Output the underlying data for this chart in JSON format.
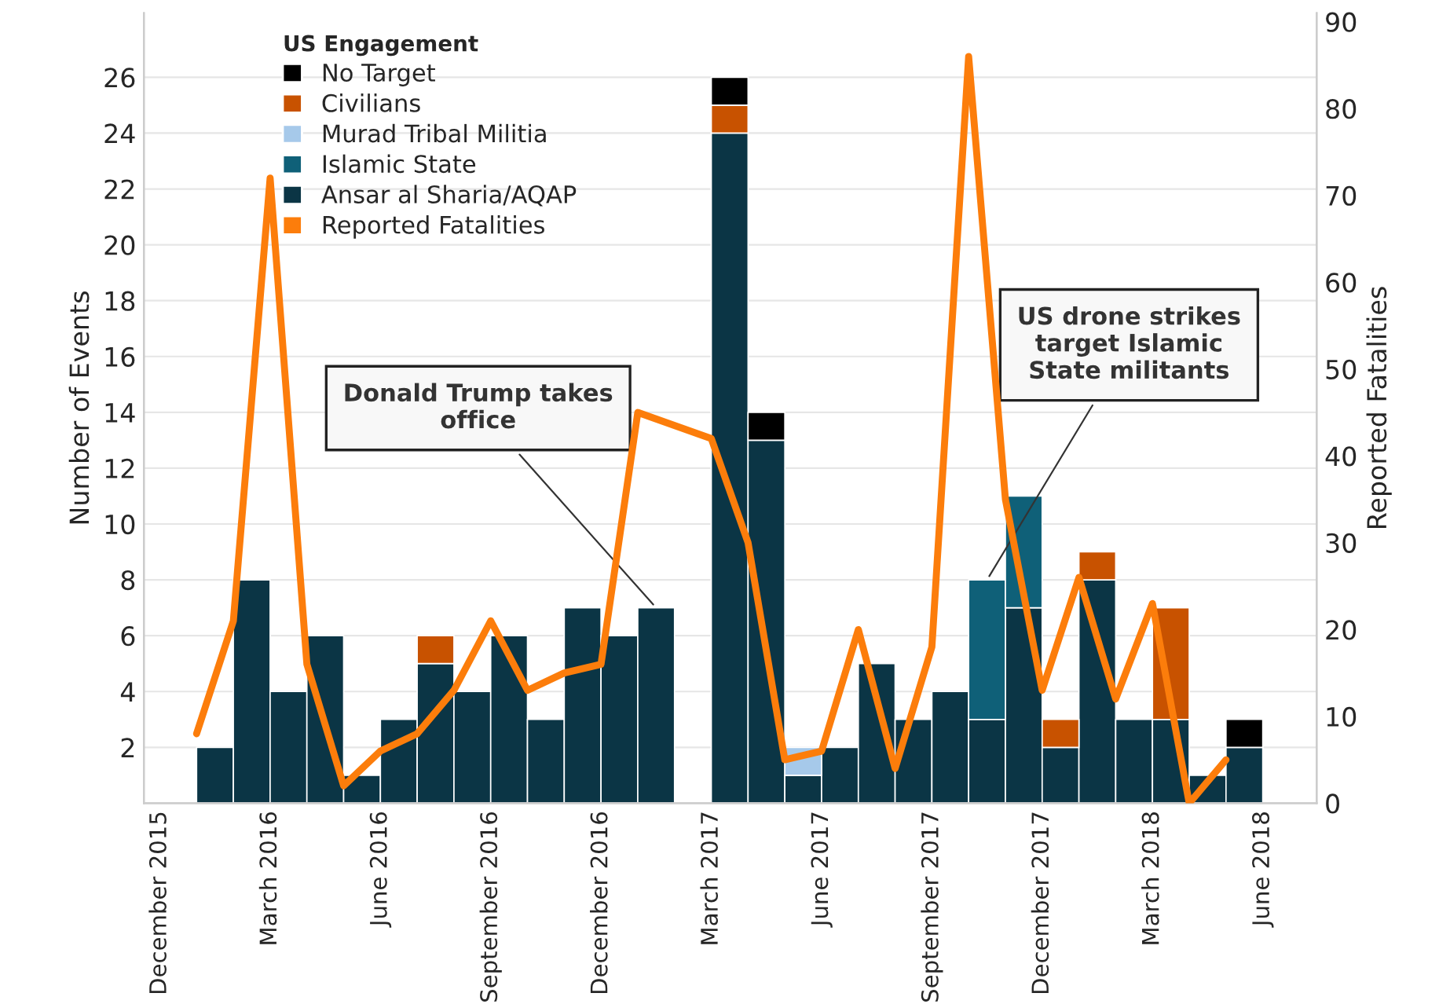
{
  "chart_data": {
    "type": "bar",
    "stacked": true,
    "x": [
      "2016-01-16",
      "2016-02-16",
      "2016-03-16",
      "2016-04-16",
      "2016-05-16",
      "2016-06-16",
      "2016-07-16",
      "2016-08-16",
      "2016-09-16",
      "2016-10-16",
      "2016-11-16",
      "2016-12-16",
      "2017-01-16",
      "2017-02-16",
      "2017-03-16",
      "2017-04-16",
      "2017-05-16",
      "2017-06-16",
      "2017-07-16",
      "2017-08-16",
      "2017-09-16",
      "2017-10-16",
      "2017-11-16",
      "2017-12-16",
      "2018-01-16",
      "2018-02-16",
      "2018-03-16",
      "2018-04-16",
      "2018-05-16"
    ],
    "series": [
      {
        "name": "Ansar al Sharia/AQAP",
        "color": "#0b3545",
        "values": [
          2,
          8,
          4,
          6,
          1,
          3,
          5,
          4,
          6,
          3,
          7,
          6,
          7,
          null,
          24,
          13,
          1,
          2,
          5,
          3,
          4,
          3,
          7,
          2,
          8,
          3,
          3,
          1,
          2
        ]
      },
      {
        "name": "Islamic State",
        "color": "#0f6078",
        "values": [
          null,
          null,
          null,
          null,
          null,
          null,
          null,
          null,
          null,
          null,
          null,
          null,
          null,
          null,
          null,
          null,
          null,
          null,
          null,
          null,
          null,
          5,
          4,
          null,
          null,
          null,
          null,
          null,
          null
        ]
      },
      {
        "name": "Murad Tribal Militia",
        "color": "#a6c9ea",
        "values": [
          null,
          null,
          null,
          null,
          null,
          null,
          null,
          null,
          null,
          null,
          null,
          null,
          null,
          null,
          null,
          null,
          1,
          null,
          null,
          null,
          null,
          null,
          null,
          null,
          null,
          null,
          null,
          null,
          null
        ]
      },
      {
        "name": "Civilians",
        "color": "#c85200",
        "values": [
          null,
          null,
          null,
          null,
          null,
          null,
          1,
          null,
          null,
          null,
          null,
          null,
          null,
          null,
          1,
          null,
          null,
          null,
          null,
          null,
          null,
          null,
          null,
          1,
          1,
          null,
          4,
          null,
          null
        ]
      },
      {
        "name": "No Target",
        "color": "#000000",
        "values": [
          null,
          null,
          null,
          null,
          null,
          null,
          null,
          null,
          null,
          null,
          null,
          null,
          null,
          null,
          1,
          1,
          null,
          null,
          null,
          null,
          null,
          null,
          null,
          null,
          null,
          null,
          null,
          null,
          1
        ]
      },
      {
        "name": "Reported Fatalities",
        "type": "line",
        "axis": "y2",
        "color": "#fc7d0b",
        "x": [
          "2016-01-01",
          "2016-02-01",
          "2016-03-01",
          "2016-04-01",
          "2016-05-01",
          "2016-06-01",
          "2016-07-01",
          "2016-08-01",
          "2016-09-01",
          "2016-10-01",
          "2016-11-01",
          "2016-12-01",
          "2017-01-01",
          "2017-03-01",
          "2017-04-01",
          "2017-05-01",
          "2017-06-01",
          "2017-07-01",
          "2017-08-01",
          "2017-09-01",
          "2017-10-01",
          "2017-11-01",
          "2017-12-01",
          "2018-01-01",
          "2018-02-01",
          "2018-03-01",
          "2018-04-01",
          "2018-05-01"
        ],
        "values": [
          8,
          21,
          72,
          16,
          2,
          6,
          8,
          13,
          21,
          13,
          15,
          16,
          45,
          42,
          30,
          5,
          6,
          20,
          4,
          18,
          86,
          35,
          13,
          26,
          12,
          23,
          0,
          5
        ]
      }
    ],
    "legend_title": "US Engagement",
    "legend": "top left",
    "grid": "y",
    "ylabel": "Number of Events",
    "y2label": "Reported Fatalities",
    "xlim": [
      "2015-11-18",
      "2018-07-15"
    ],
    "xticks": [
      {
        "value": "2015-12",
        "label": "December 2015"
      },
      {
        "value": "2016-03",
        "label": "March 2016"
      },
      {
        "value": "2016-06",
        "label": "June 2016"
      },
      {
        "value": "2016-09",
        "label": "September 2016"
      },
      {
        "value": "2016-12",
        "label": "December 2016"
      },
      {
        "value": "2017-03",
        "label": "March 2017"
      },
      {
        "value": "2017-06",
        "label": "June 2017"
      },
      {
        "value": "2017-09",
        "label": "September 2017"
      },
      {
        "value": "2017-12",
        "label": "December 2017"
      },
      {
        "value": "2018-03",
        "label": "March 2018"
      },
      {
        "value": "2018-06",
        "label": "June 2018"
      }
    ],
    "ylim": [
      0,
      28.3
    ],
    "yticks": [
      2,
      4,
      6,
      8,
      10,
      12,
      14,
      16,
      18,
      20,
      22,
      24,
      26
    ],
    "y2lim": [
      0,
      91
    ],
    "y2ticks": [
      0,
      10,
      20,
      30,
      40,
      50,
      60,
      70,
      80,
      90
    ],
    "annotations": [
      {
        "text": "Donald Trump takes office",
        "x": "2017-01-16",
        "y": 7
      },
      {
        "text": "US drone strikes target Islamic State militants",
        "x": "2017-10-16",
        "y": 8
      }
    ]
  }
}
